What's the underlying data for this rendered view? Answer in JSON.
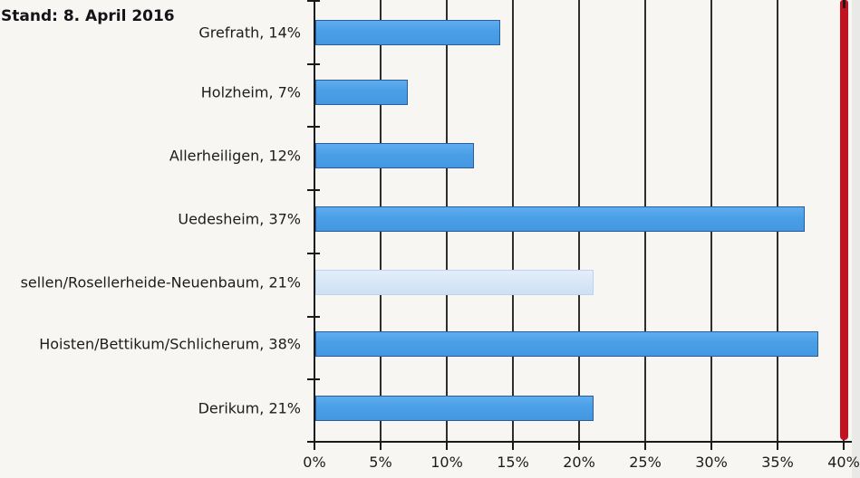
{
  "chart_data": {
    "type": "bar",
    "orientation": "horizontal",
    "title": "Stand: 8. April 2016",
    "categories": [
      "Grefrath",
      "Holzheim",
      "Allerheiligen",
      "Uedesheim",
      "sellen/Rosellerheide-Neuenbaum",
      "Hoisten/Bettikum/Schlicherum",
      "Derikum"
    ],
    "values": [
      14,
      7,
      12,
      37,
      21,
      38,
      21
    ],
    "labels": [
      "Grefrath, 14%",
      "Holzheim, 7%",
      "Allerheiligen, 12%",
      "Uedesheim, 37%",
      "sellen/Rosellerheide-Neuenbaum, 21%",
      "Hoisten/Bettikum/Schlicherum, 38%",
      "Derikum, 21%"
    ],
    "highlighted_category_index": 4,
    "x_ticks": [
      "0%",
      "5%",
      "10%",
      "15%",
      "20%",
      "25%",
      "30%",
      "35%",
      "40%"
    ],
    "xlim": [
      0,
      40
    ],
    "grid": true,
    "reference_line": {
      "value": 40,
      "color": "#c2121f"
    },
    "bar_color": "#4a9fe6",
    "bar_border_color": "#2b5d9b",
    "highlight_bar_color": "#d7e6f7",
    "axis_color": "#1a1a1a",
    "background_color": "#f7f6f3"
  }
}
